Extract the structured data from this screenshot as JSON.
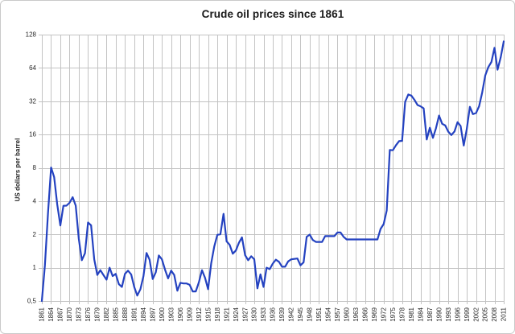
{
  "window": {
    "background": "#ffffff",
    "border_color": "#c9c9c9"
  },
  "chart_data": {
    "type": "line",
    "title": "Crude oil prices since 1861",
    "xlabel": "",
    "ylabel": "US dollars per barrel",
    "y_scale": "log2",
    "ylim": [
      0.5,
      128
    ],
    "grid": true,
    "legend": "none",
    "y_tick_labels": [
      "128",
      "64",
      "32",
      "16",
      "8",
      "4",
      "2",
      "1",
      "0,5"
    ],
    "y_tick_values": [
      128,
      64,
      32,
      16,
      8,
      4,
      2,
      1,
      0.5
    ],
    "x_range": [
      1861,
      2011
    ],
    "x_tick_interval": 3,
    "x_ticks": [
      1861,
      1864,
      1867,
      1870,
      1873,
      1876,
      1879,
      1882,
      1885,
      1888,
      1891,
      1894,
      1897,
      1900,
      1903,
      1906,
      1909,
      1912,
      1915,
      1918,
      1921,
      1924,
      1927,
      1930,
      1933,
      1936,
      1939,
      1942,
      1945,
      1948,
      1951,
      1954,
      1957,
      1960,
      1963,
      1966,
      1969,
      1972,
      1975,
      1978,
      1981,
      1984,
      1987,
      1990,
      1993,
      1996,
      1999,
      2002,
      2005,
      2008,
      2011
    ],
    "series": [
      {
        "name": "Crude oil price (US dollars per barrel)",
        "x_start": 1861,
        "values": [
          0.49,
          1.05,
          3.15,
          8.06,
          6.59,
          3.74,
          2.41,
          3.63,
          3.64,
          3.86,
          4.34,
          3.64,
          1.83,
          1.17,
          1.35,
          2.56,
          2.42,
          1.19,
          0.86,
          0.95,
          0.86,
          0.78,
          1.0,
          0.84,
          0.88,
          0.71,
          0.67,
          0.88,
          0.94,
          0.87,
          0.67,
          0.56,
          0.64,
          0.84,
          1.36,
          1.18,
          0.79,
          0.91,
          1.29,
          1.19,
          0.96,
          0.8,
          0.94,
          0.86,
          0.62,
          0.73,
          0.72,
          0.72,
          0.7,
          0.61,
          0.61,
          0.74,
          0.95,
          0.81,
          0.64,
          1.1,
          1.56,
          1.98,
          2.01,
          3.07,
          1.73,
          1.61,
          1.34,
          1.43,
          1.68,
          1.88,
          1.3,
          1.17,
          1.27,
          1.19,
          0.65,
          0.87,
          0.67,
          1.0,
          0.97,
          1.09,
          1.18,
          1.13,
          1.02,
          1.02,
          1.14,
          1.19,
          1.2,
          1.21,
          1.05,
          1.12,
          1.9,
          1.99,
          1.78,
          1.71,
          1.71,
          1.71,
          1.93,
          1.93,
          1.93,
          1.93,
          2.08,
          2.08,
          1.9,
          1.8,
          1.8,
          1.8,
          1.8,
          1.8,
          1.8,
          1.8,
          1.8,
          1.8,
          1.8,
          1.8,
          2.24,
          2.48,
          3.29,
          11.58,
          11.53,
          12.8,
          13.92,
          14.02,
          31.61,
          36.83,
          35.93,
          32.97,
          29.55,
          28.78,
          27.56,
          14.43,
          18.44,
          14.92,
          18.23,
          23.73,
          20.0,
          19.32,
          16.97,
          15.82,
          17.02,
          20.67,
          19.09,
          12.72,
          17.97,
          28.5,
          24.44,
          25.02,
          28.83,
          38.27,
          54.52,
          65.14,
          72.39,
          97.26,
          61.67,
          79.5,
          111.26
        ]
      }
    ],
    "colors": {
      "line": "#2442c0",
      "grid": "#c3c3c3",
      "tick_text": "#262626",
      "title_text": "#1a1a1a"
    }
  }
}
